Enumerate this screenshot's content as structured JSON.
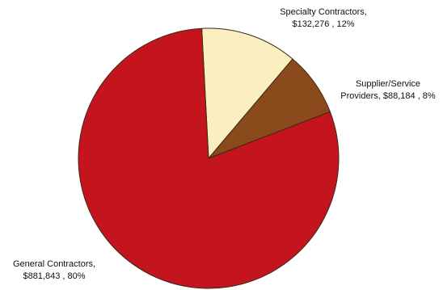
{
  "chart_data": {
    "type": "pie",
    "title": "",
    "slices": [
      {
        "label": "Specialty Contractors",
        "value": 132276,
        "percent": 12,
        "color": "#fbefc0",
        "label_lines": [
          "Specialty Contractors,",
          "$132,276 , 12%"
        ]
      },
      {
        "label": "Supplier/Service Providers",
        "value": 88184,
        "percent": 8,
        "color": "#8b4a1c",
        "label_lines": [
          "Supplier/Service",
          "Providers, $88,184 , 8%"
        ]
      },
      {
        "label": "General Contractors",
        "value": 881843,
        "percent": 80,
        "color": "#c4141d",
        "label_lines": [
          "General Contractors,",
          "$881,843 , 80%"
        ]
      }
    ],
    "start_angle_deg": -3,
    "direction": "clockwise",
    "slice_border_color": "#3a2a1a",
    "legend": "none"
  }
}
